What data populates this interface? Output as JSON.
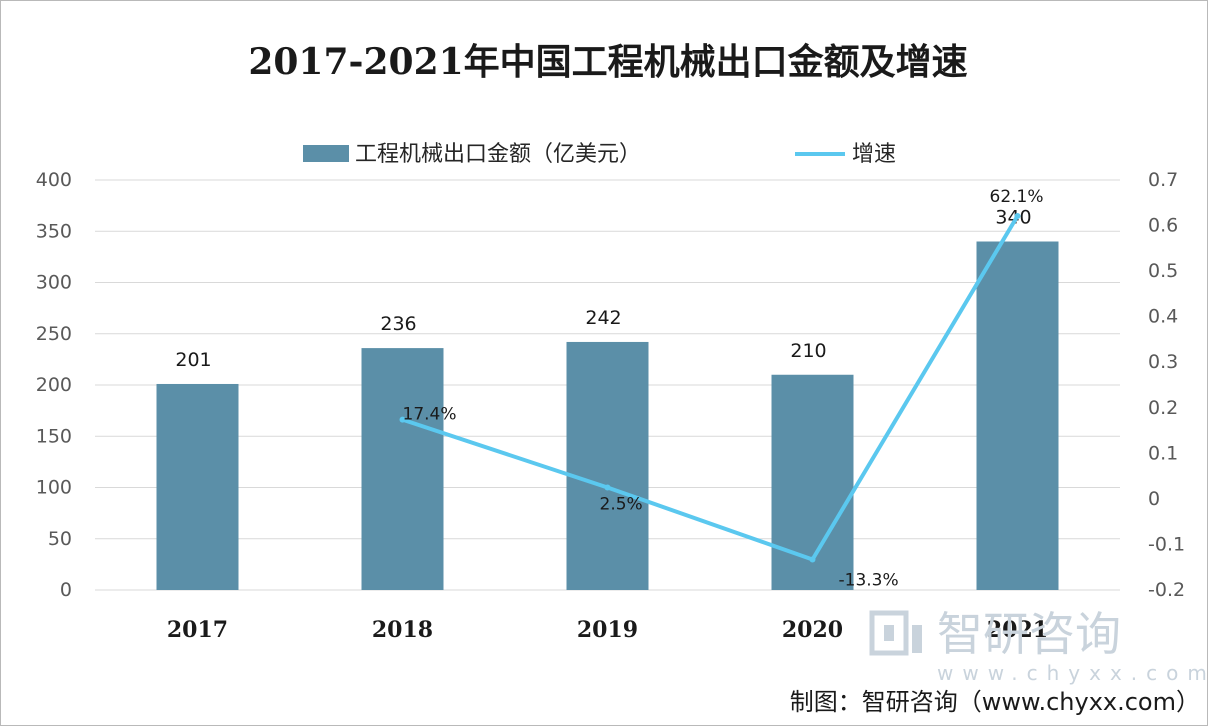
{
  "chart_data": {
    "type": "bar",
    "title": "2017-2021年中国工程机械出口金额及增速",
    "categories": [
      "2017",
      "2018",
      "2019",
      "2020",
      "2021"
    ],
    "series": [
      {
        "name": "工程机械出口金额（亿美元）",
        "type": "bar",
        "axis": "left",
        "values": [
          201,
          236,
          242,
          210,
          340
        ],
        "labels": [
          "201",
          "236",
          "242",
          "210",
          "340"
        ],
        "color": "#5b8fa8"
      },
      {
        "name": "增速",
        "type": "line",
        "axis": "right",
        "values": [
          null,
          0.174,
          0.025,
          -0.133,
          0.621
        ],
        "labels": [
          "",
          "17.4%",
          "2.5%",
          "-13.3%",
          "62.1%"
        ],
        "color": "#5bc8ef"
      }
    ],
    "y_left": {
      "min": 0,
      "max": 400,
      "ticks": [
        "0",
        "50",
        "100",
        "150",
        "200",
        "250",
        "300",
        "350",
        "400"
      ]
    },
    "y_right": {
      "min": -0.2,
      "max": 0.7,
      "ticks": [
        "-0.2",
        "-0.1",
        "0",
        "0.1",
        "0.2",
        "0.3",
        "0.4",
        "0.5",
        "0.6",
        "0.7"
      ]
    },
    "grid": true,
    "legend_position": "top"
  },
  "watermark": {
    "text": "智研咨询",
    "url": "www.chyxx.com"
  },
  "credit": "制图：智研咨询（www.chyxx.com）"
}
